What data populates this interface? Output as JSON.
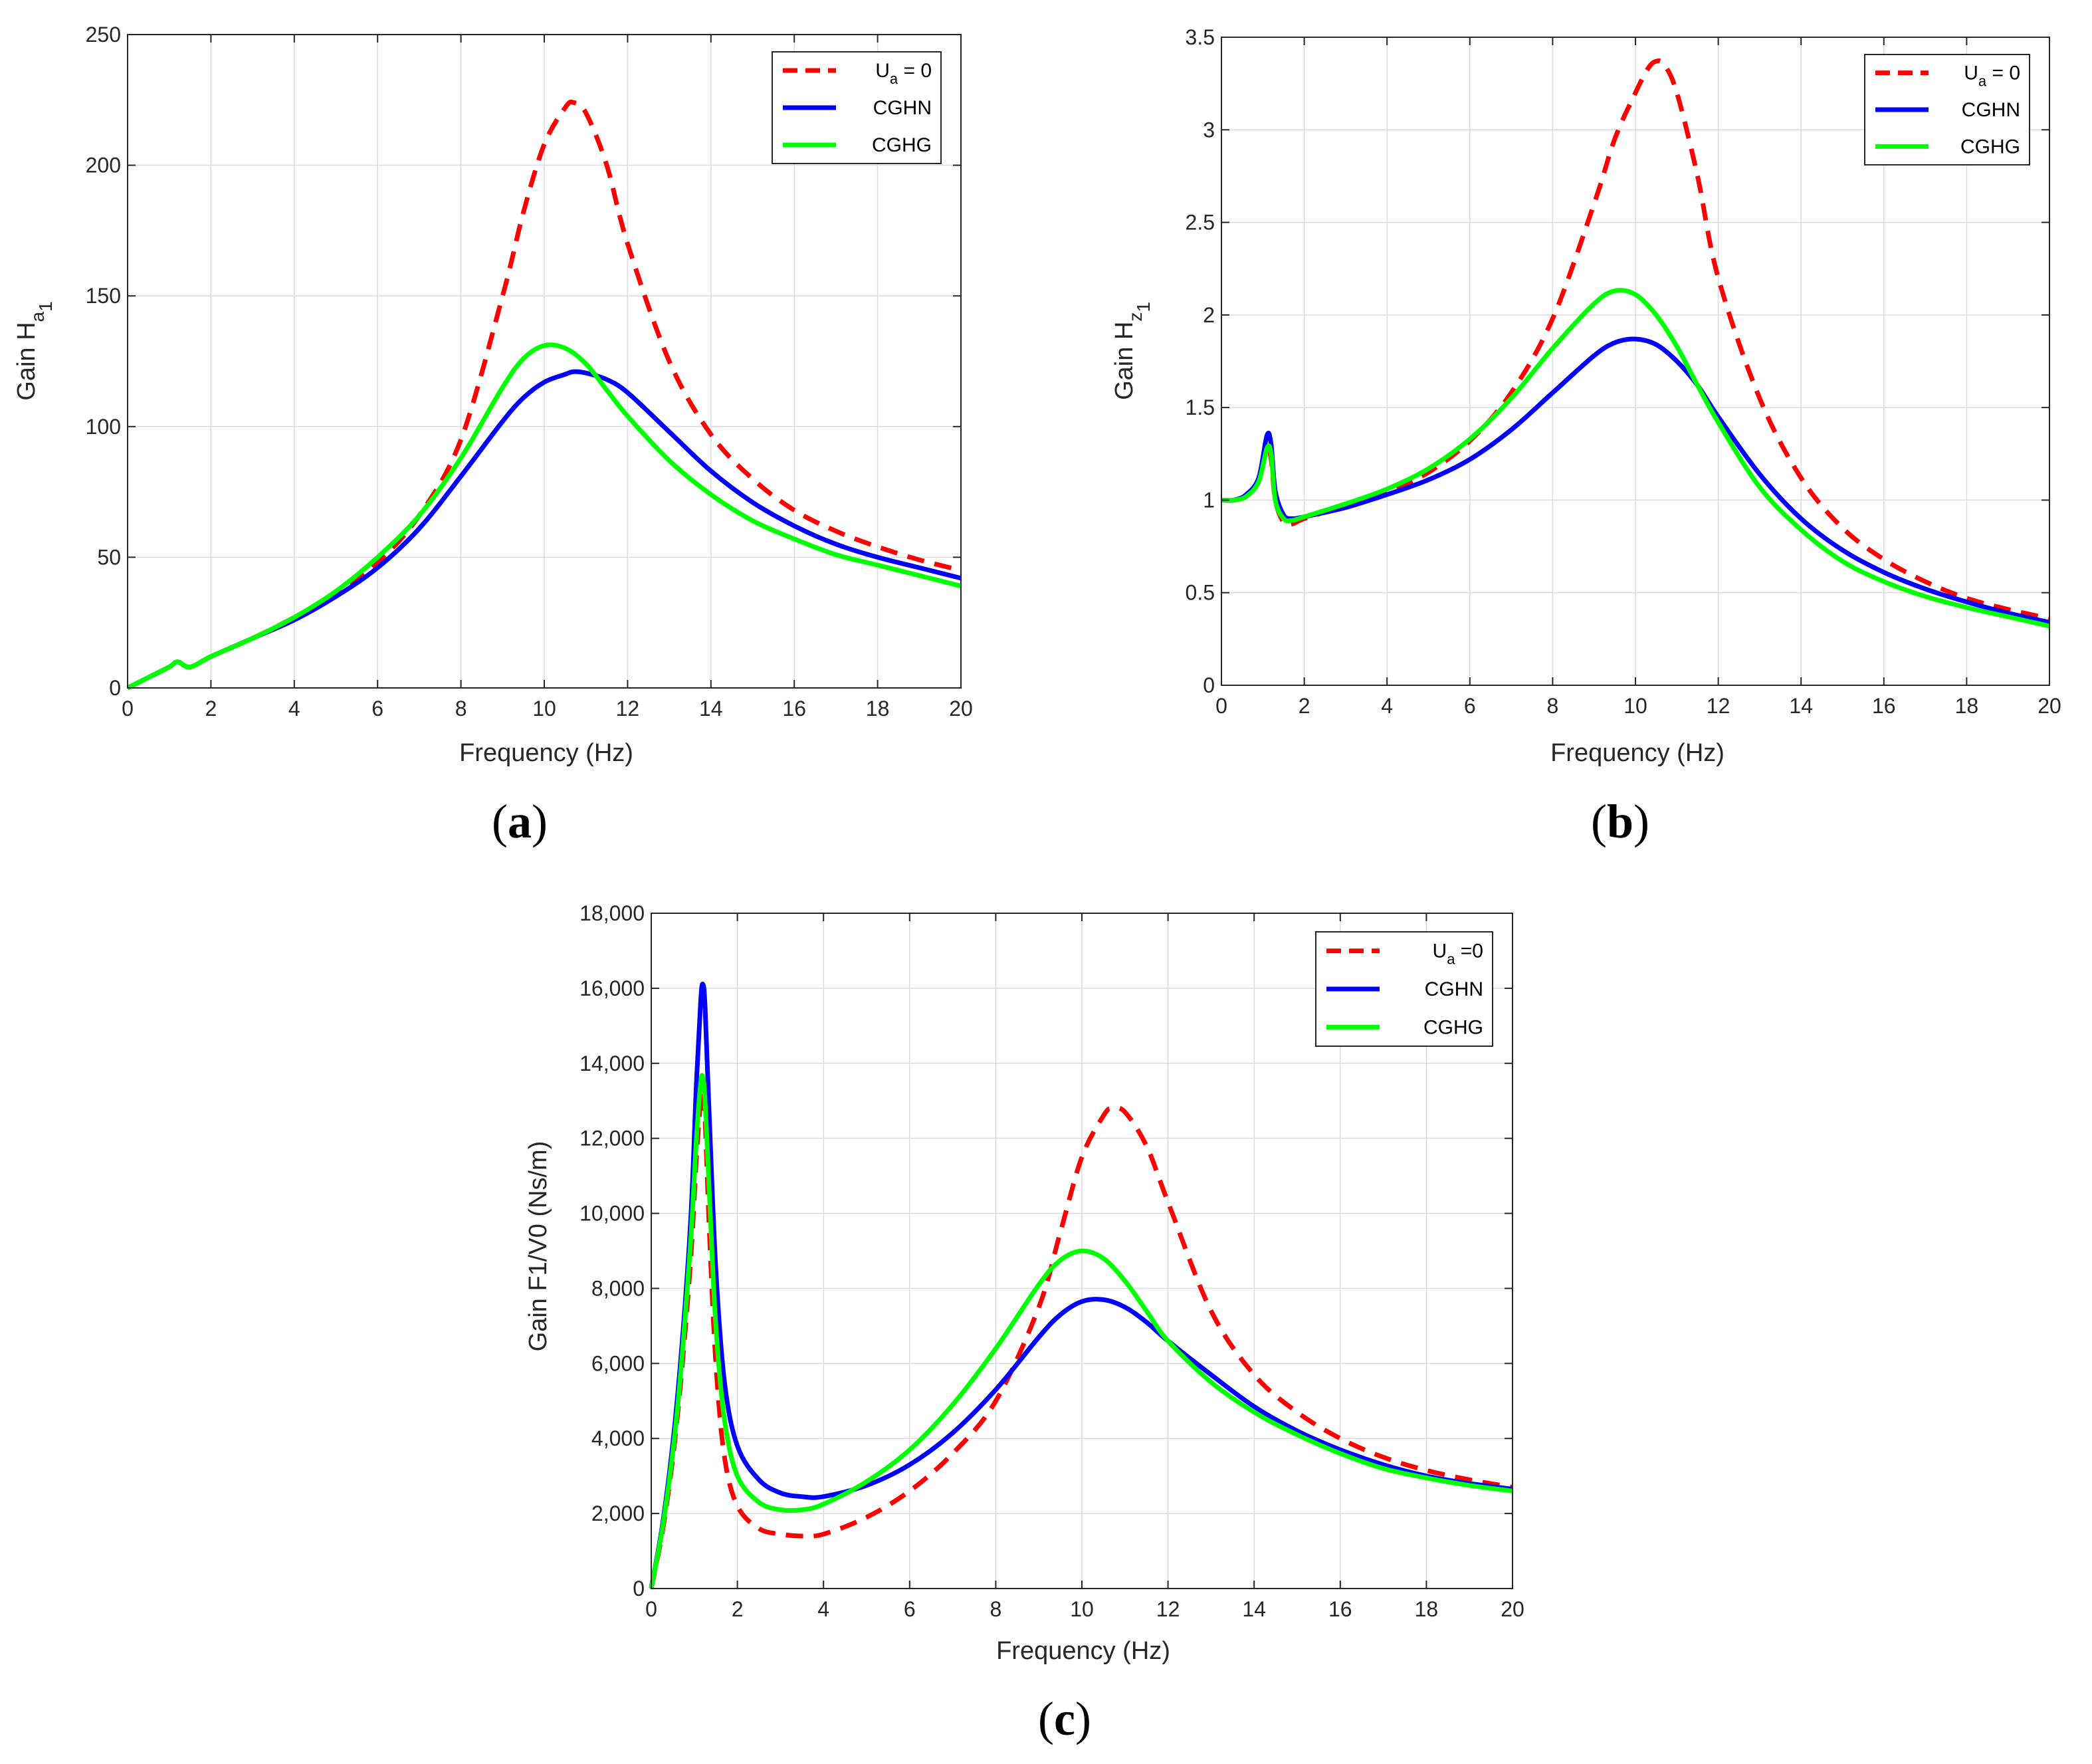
{
  "colors": {
    "dashed": "#ff0000",
    "cghn": "#0000ff",
    "cghg": "#00ff00",
    "grid": "#dcdcdc",
    "axis": "#262626"
  },
  "chart_data": [
    {
      "panel": "a",
      "type": "line",
      "caption_open": "(",
      "caption_letter": "a",
      "caption_close": ")",
      "xlabel": "Frequency (Hz)",
      "ylabel_main": "Gain H",
      "ylabel_sub1": "a",
      "ylabel_sub2": "1",
      "xlim": [
        0,
        20
      ],
      "ylim": [
        0,
        250
      ],
      "xticks": [
        0,
        2,
        4,
        6,
        8,
        10,
        12,
        14,
        16,
        18,
        20
      ],
      "xtick_labels": [
        "0",
        "2",
        "4",
        "6",
        "8",
        "10",
        "12",
        "14",
        "16",
        "18",
        "20"
      ],
      "yticks": [
        0,
        50,
        100,
        150,
        200,
        250
      ],
      "ytick_labels": [
        "0",
        "50",
        "100",
        "150",
        "200",
        "250"
      ],
      "legend": [
        {
          "main": "U",
          "sub": "a",
          "rest": " = 0",
          "style": "dashed"
        },
        {
          "main": "CGHN",
          "style": "cghn"
        },
        {
          "main": "CGHG",
          "style": "cghg"
        }
      ],
      "series": [
        {
          "name": "U_a = 0",
          "style": "dashed",
          "x": [
            0,
            0.5,
            1.0,
            1.2,
            1.5,
            2,
            3,
            4,
            5,
            6,
            7,
            8,
            9,
            9.5,
            10,
            10.5,
            10.7,
            11,
            11.5,
            12,
            13,
            14,
            15,
            16,
            17,
            18,
            19,
            20
          ],
          "y": [
            0,
            4,
            8,
            10,
            8,
            12,
            19,
            27,
            36,
            48,
            66,
            95,
            150,
            182,
            208,
            222,
            224,
            220,
            200,
            170,
            125,
            97,
            80,
            68,
            60,
            54,
            49,
            45
          ]
        },
        {
          "name": "CGHN",
          "style": "cghn",
          "x": [
            0,
            0.5,
            1.0,
            1.2,
            1.5,
            2,
            3,
            4,
            5,
            6,
            7,
            8,
            9,
            9.5,
            10,
            10.5,
            10.7,
            11,
            11.5,
            12,
            13,
            14,
            15,
            16,
            17,
            18,
            19,
            20
          ],
          "y": [
            0,
            4,
            8,
            10,
            8,
            12,
            19,
            26,
            35,
            46,
            61,
            81,
            102,
            111,
            117,
            120,
            121,
            120.5,
            118,
            113,
            98,
            83,
            71,
            62,
            55,
            50,
            46,
            42
          ]
        },
        {
          "name": "CGHG",
          "style": "cghg",
          "x": [
            0,
            0.5,
            1.0,
            1.2,
            1.5,
            2,
            3,
            4,
            5,
            6,
            7,
            8,
            9,
            9.5,
            10,
            10.5,
            11,
            11.5,
            12,
            13,
            14,
            15,
            16,
            17,
            18,
            19,
            20
          ],
          "y": [
            0,
            4,
            8,
            10,
            8,
            12,
            19,
            27,
            37,
            50,
            66,
            88,
            115,
            126,
            131,
            130,
            124,
            114,
            104,
            87,
            74,
            64,
            57,
            51,
            47,
            43,
            39
          ]
        }
      ]
    },
    {
      "panel": "b",
      "type": "line",
      "caption_open": "(",
      "caption_letter": "b",
      "caption_close": ")",
      "xlabel": "Frequency (Hz)",
      "ylabel_main": "Gain H",
      "ylabel_sub1": "z",
      "ylabel_sub2": "1",
      "xlim": [
        0,
        20
      ],
      "ylim": [
        0,
        3.5
      ],
      "xticks": [
        0,
        2,
        4,
        6,
        8,
        10,
        12,
        14,
        16,
        18,
        20
      ],
      "xtick_labels": [
        "0",
        "2",
        "4",
        "6",
        "8",
        "10",
        "12",
        "14",
        "16",
        "18",
        "20"
      ],
      "yticks": [
        0,
        0.5,
        1,
        1.5,
        2,
        2.5,
        3,
        3.5
      ],
      "ytick_labels": [
        "0",
        "0.5",
        "1",
        "1.5",
        "2",
        "2.5",
        "3",
        "3.5"
      ],
      "legend": [
        {
          "main": "U",
          "sub": "a",
          "rest": " = 0",
          "style": "dashed"
        },
        {
          "main": "CGHN",
          "style": "cghn"
        },
        {
          "main": "CGHG",
          "style": "cghg"
        }
      ],
      "series": [
        {
          "name": "U_a = 0",
          "style": "dashed",
          "x": [
            0,
            0.3,
            0.6,
            0.9,
            1.1,
            1.2,
            1.3,
            1.5,
            1.7,
            2,
            3,
            4,
            5,
            6,
            7,
            8,
            9,
            9.5,
            10,
            10.3,
            10.5,
            10.7,
            11,
            11.5,
            12,
            13,
            14,
            15,
            16,
            17,
            18,
            19,
            20
          ],
          "y": [
            1.0,
            1.0,
            1.02,
            1.1,
            1.28,
            1.22,
            1.0,
            0.88,
            0.87,
            0.9,
            0.97,
            1.04,
            1.15,
            1.32,
            1.58,
            1.98,
            2.6,
            2.95,
            3.2,
            3.33,
            3.37,
            3.35,
            3.2,
            2.75,
            2.2,
            1.55,
            1.12,
            0.85,
            0.68,
            0.56,
            0.47,
            0.41,
            0.36
          ]
        },
        {
          "name": "CGHN",
          "style": "cghn",
          "x": [
            0,
            0.3,
            0.6,
            0.9,
            1.1,
            1.2,
            1.3,
            1.5,
            1.7,
            2,
            3,
            4,
            5,
            6,
            7,
            8,
            9,
            9.5,
            10,
            10.5,
            11,
            11.5,
            12,
            13,
            14,
            15,
            16,
            17,
            18,
            19,
            20
          ],
          "y": [
            1.0,
            1.0,
            1.03,
            1.12,
            1.35,
            1.3,
            1.05,
            0.92,
            0.9,
            0.91,
            0.96,
            1.03,
            1.11,
            1.22,
            1.38,
            1.58,
            1.78,
            1.85,
            1.87,
            1.84,
            1.75,
            1.62,
            1.45,
            1.14,
            0.9,
            0.73,
            0.61,
            0.52,
            0.45,
            0.39,
            0.34
          ]
        },
        {
          "name": "CGHG",
          "style": "cghg",
          "x": [
            0,
            0.3,
            0.6,
            0.9,
            1.1,
            1.2,
            1.3,
            1.5,
            1.7,
            2,
            3,
            4,
            5,
            6,
            7,
            8,
            9,
            9.5,
            10,
            10.5,
            11,
            11.5,
            12,
            13,
            14,
            15,
            16,
            17,
            18,
            19,
            20
          ],
          "y": [
            1.0,
            1.0,
            1.02,
            1.1,
            1.28,
            1.25,
            1.0,
            0.9,
            0.89,
            0.91,
            0.98,
            1.06,
            1.17,
            1.33,
            1.55,
            1.82,
            2.06,
            2.13,
            2.11,
            2.0,
            1.83,
            1.62,
            1.42,
            1.07,
            0.84,
            0.67,
            0.56,
            0.48,
            0.42,
            0.37,
            0.32
          ]
        }
      ]
    },
    {
      "panel": "c",
      "type": "line",
      "caption_open": "(",
      "caption_letter": "c",
      "caption_close": ")",
      "xlabel": "Frequency (Hz)",
      "ylabel_main": "Gain F1/V0 (Ns/m)",
      "xlim": [
        0,
        20
      ],
      "ylim": [
        0,
        18000
      ],
      "xticks": [
        0,
        2,
        4,
        6,
        8,
        10,
        12,
        14,
        16,
        18,
        20
      ],
      "xtick_labels": [
        "0",
        "2",
        "4",
        "6",
        "8",
        "10",
        "12",
        "14",
        "16",
        "18",
        "20"
      ],
      "yticks": [
        0,
        2000,
        4000,
        6000,
        8000,
        10000,
        12000,
        14000,
        16000,
        18000
      ],
      "ytick_labels": [
        "0",
        "2,000",
        "4,000",
        "6,000",
        "8,000",
        "10,000",
        "12,000",
        "14,000",
        "16,000",
        "18,000"
      ],
      "legend": [
        {
          "main": "U",
          "sub": "a",
          "rest": " =0",
          "style": "dashed"
        },
        {
          "main": "CGHN",
          "style": "cghn"
        },
        {
          "main": "CGHG",
          "style": "cghg"
        }
      ],
      "series": [
        {
          "name": "U_a =0",
          "style": "dashed",
          "x": [
            0,
            0.3,
            0.6,
            0.9,
            1.05,
            1.15,
            1.2,
            1.25,
            1.35,
            1.5,
            1.7,
            2,
            2.5,
            3,
            3.5,
            4,
            5,
            6,
            7,
            8,
            9,
            9.5,
            10,
            10.5,
            10.7,
            11,
            11.5,
            12,
            13,
            14,
            15,
            16,
            17,
            18,
            19,
            20
          ],
          "y": [
            0,
            1800,
            4500,
            8500,
            11500,
            13000,
            13200,
            12500,
            9500,
            6000,
            3500,
            2200,
            1600,
            1450,
            1400,
            1450,
            1900,
            2600,
            3600,
            5000,
            7500,
            9500,
            11500,
            12600,
            12800,
            12700,
            11800,
            10300,
            7400,
            5700,
            4700,
            4000,
            3500,
            3150,
            2900,
            2700
          ]
        },
        {
          "name": "CGHN",
          "style": "cghn",
          "x": [
            0,
            0.3,
            0.6,
            0.9,
            1.05,
            1.15,
            1.2,
            1.25,
            1.35,
            1.5,
            1.7,
            2,
            2.5,
            3,
            3.5,
            4,
            5,
            6,
            7,
            8,
            9,
            9.5,
            10,
            10.5,
            11,
            11.5,
            12,
            13,
            14,
            15,
            16,
            17,
            18,
            19,
            20
          ],
          "y": [
            0,
            2000,
            5000,
            9500,
            13500,
            15700,
            16100,
            15500,
            12500,
            8500,
            5500,
            3800,
            2900,
            2550,
            2450,
            2450,
            2750,
            3300,
            4150,
            5300,
            6700,
            7300,
            7650,
            7700,
            7500,
            7100,
            6600,
            5700,
            4850,
            4200,
            3700,
            3300,
            3000,
            2800,
            2650
          ]
        },
        {
          "name": "CGHG",
          "style": "cghg",
          "x": [
            0,
            0.3,
            0.6,
            0.9,
            1.05,
            1.15,
            1.2,
            1.25,
            1.35,
            1.5,
            1.7,
            2,
            2.5,
            3,
            3.5,
            4,
            5,
            6,
            7,
            8,
            9,
            9.5,
            10,
            10.5,
            11,
            11.5,
            12,
            13,
            14,
            15,
            16,
            17,
            18,
            19,
            20
          ],
          "y": [
            0,
            1900,
            4700,
            9000,
            12000,
            13500,
            13600,
            13000,
            10500,
            7000,
            4500,
            3000,
            2300,
            2100,
            2100,
            2250,
            2850,
            3700,
            4900,
            6400,
            8100,
            8750,
            9000,
            8800,
            8200,
            7400,
            6600,
            5500,
            4700,
            4100,
            3600,
            3200,
            2950,
            2750,
            2600
          ]
        }
      ]
    }
  ]
}
